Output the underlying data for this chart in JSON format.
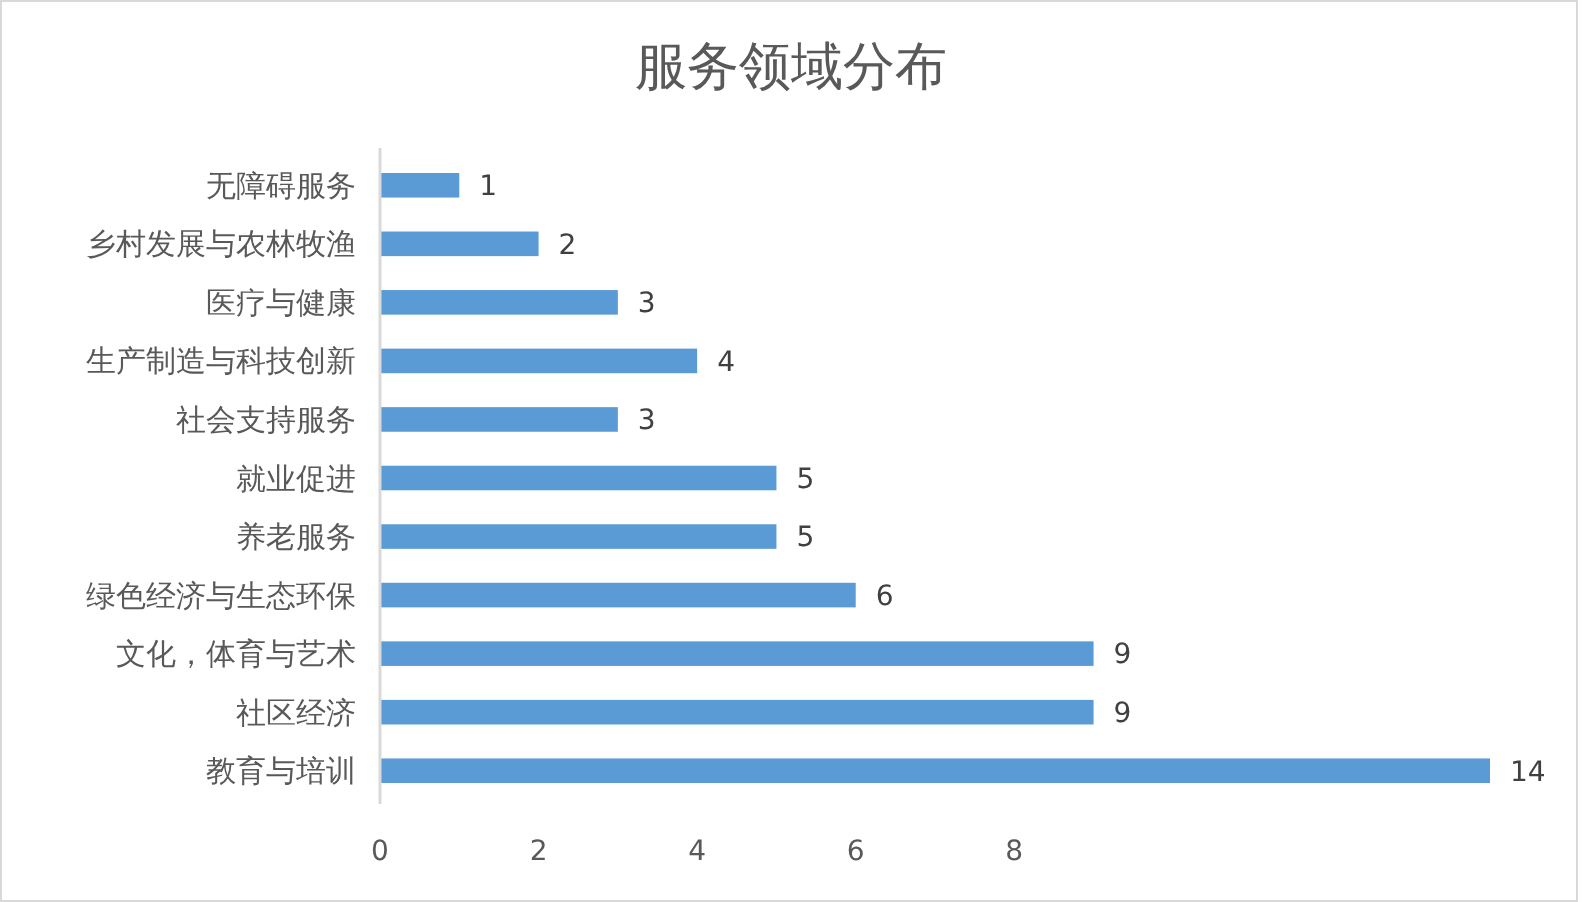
{
  "chart_data": {
    "type": "bar",
    "orientation": "horizontal",
    "title": "服务领域分布",
    "categories": [
      "无障碍服务",
      "乡村发展与农林牧渔",
      "医疗与健康",
      "生产制造与科技创新",
      "社会支持服务",
      "就业促进",
      "养老服务",
      "绿色经济与生态环保",
      "文化，体育与艺术",
      "社区经济",
      "教育与培训"
    ],
    "values": [
      1,
      2,
      3,
      4,
      3,
      5,
      5,
      6,
      9,
      9,
      14
    ],
    "color": "#5b9bd5",
    "xlim": [
      0,
      14
    ],
    "xticks": [
      0,
      2,
      4,
      6,
      8
    ],
    "grid": false,
    "data_labels": true
  }
}
